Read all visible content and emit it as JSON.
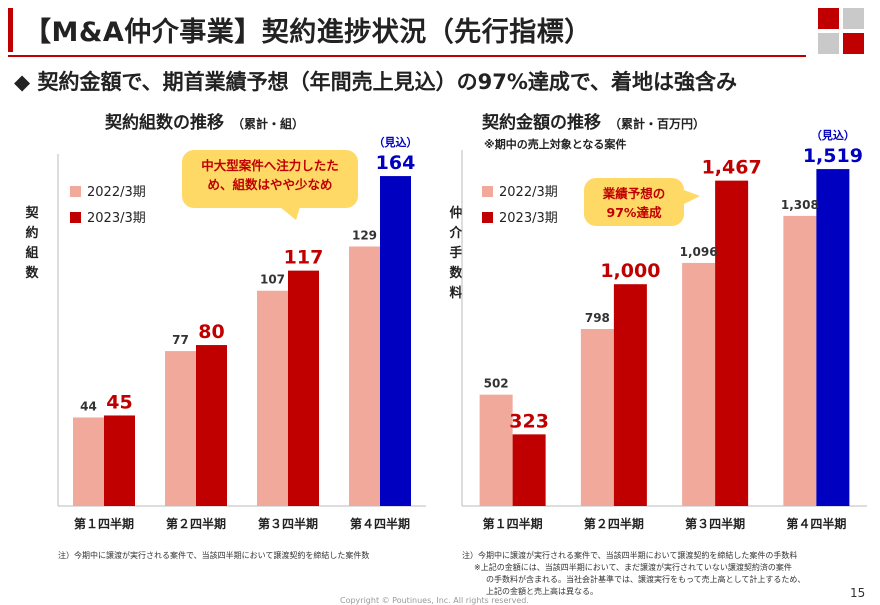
{
  "header": {
    "title": "【M&A仲介事業】契約進捗状況（先行指標）",
    "subtitle": "◆ 契約金額で、期首業績予想（年間売上見込）の97%達成で、着地は強含み"
  },
  "colors": {
    "accent": "#c00000",
    "prev": "#f0a99a",
    "curr": "#c00000",
    "forecast": "#0000c0",
    "callout": "#ffd966"
  },
  "chart_data": [
    {
      "type": "bar",
      "title": "契約組数の推移",
      "title_note": "（累計・組）",
      "ylabel": "契約組数",
      "categories": [
        "第１四半期",
        "第２四半期",
        "第３四半期",
        "第４四半期"
      ],
      "series": [
        {
          "name": "2022/3期",
          "values": [
            44,
            77,
            107,
            129
          ]
        },
        {
          "name": "2023/3期",
          "values": [
            45,
            80,
            117,
            164
          ]
        }
      ],
      "value_labels": {
        "2022/3期": [
          "44",
          "77",
          "107",
          "129"
        ],
        "2023/3期": [
          "45",
          "80",
          "117",
          "164"
        ]
      },
      "forecast_label": "（見込）",
      "ylim": [
        0,
        170
      ],
      "legend": "top-left",
      "callout": "中大型案件へ注力したため、組数はやや少なめ",
      "footnote": "注）今期中に譲渡が実行される案件で、当該四半期において譲渡契約を締結した案件数"
    },
    {
      "type": "bar",
      "title": "契約金額の推移",
      "title_note": "（累計・百万円）",
      "note": "※期中の売上対象となる案件",
      "ylabel": "仲介手数料",
      "categories": [
        "第１四半期",
        "第２四半期",
        "第３四半期",
        "第４四半期"
      ],
      "series": [
        {
          "name": "2022/3期",
          "values": [
            502,
            798,
            1096,
            1308
          ]
        },
        {
          "name": "2023/3期",
          "values": [
            323,
            1000,
            1467,
            1519
          ]
        }
      ],
      "value_labels": {
        "2022/3期": [
          "502",
          "798",
          "1,096",
          "1,308"
        ],
        "2023/3期": [
          "323",
          "1,000",
          "1,467",
          "1,519"
        ]
      },
      "forecast_label": "（見込）",
      "ylim": [
        0,
        1560
      ],
      "legend": "top-left",
      "callout": "業績予想の97%達成",
      "footnote_lines": [
        "注）今期中に譲渡が実行される案件で、当該四半期において譲渡契約を締結した案件の手数料",
        "※上記の金額には、当該四半期において、まだ譲渡が実行されていない譲渡契約済の案件",
        "の手数料が含まれる。当社会計基準では、譲渡実行をもって売上高として計上するため、",
        "上記の金額と売上高は異なる。"
      ]
    }
  ],
  "footer": {
    "copyright": "Copyright © Poutinues, Inc. All rights reserved.",
    "page": "15"
  }
}
